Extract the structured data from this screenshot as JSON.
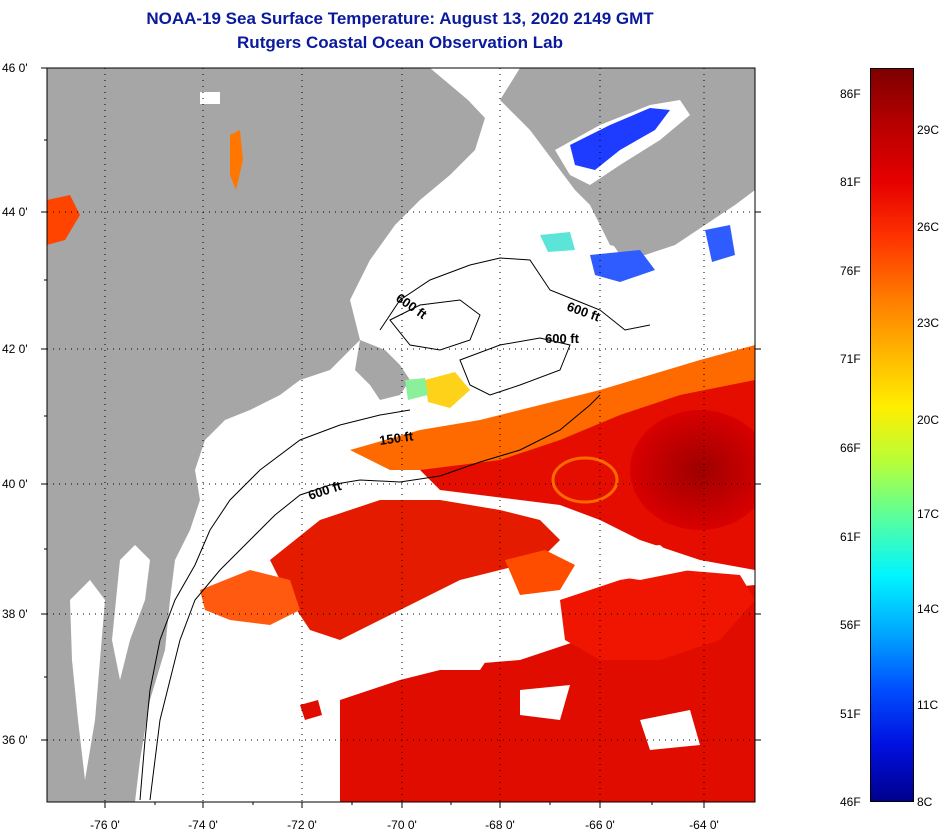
{
  "header": {
    "title_line1": "NOAA-19 Sea Surface Temperature:  August 13, 2020 2149 GMT",
    "title_line2": "Rutgers Coastal Ocean Observation Lab"
  },
  "map": {
    "lat_labels": [
      "46 0'",
      "44 0'",
      "42 0'",
      "40 0'",
      "38 0'",
      "36 0'"
    ],
    "lon_labels": [
      "-76 0'",
      "-74 0'",
      "-72 0'",
      "-70 0'",
      "-68 0'",
      "-66 0'",
      "-64 0'"
    ],
    "isobath_labels": [
      "600 ft",
      "600 ft",
      "600 ft",
      "150 ft",
      "600 ft"
    ],
    "colors": {
      "land": "#a6a6a6",
      "ocean_cloud": "#ffffff",
      "frame": "#000000"
    }
  },
  "colorbar": {
    "fahrenheit_labels": [
      "86F",
      "81F",
      "76F",
      "71F",
      "66F",
      "61F",
      "56F",
      "51F",
      "46F"
    ],
    "celsius_labels": [
      "29C",
      "26C",
      "23C",
      "20C",
      "17C",
      "14C",
      "11C",
      "8C"
    ],
    "gradient": [
      "#7d0000",
      "#b80000",
      "#e60000",
      "#ff3300",
      "#ff7700",
      "#ffb300",
      "#ffee00",
      "#b5ff3a",
      "#55ffa0",
      "#00f5ff",
      "#00a8ff",
      "#0050ff",
      "#0010e0",
      "#00008c"
    ]
  }
}
